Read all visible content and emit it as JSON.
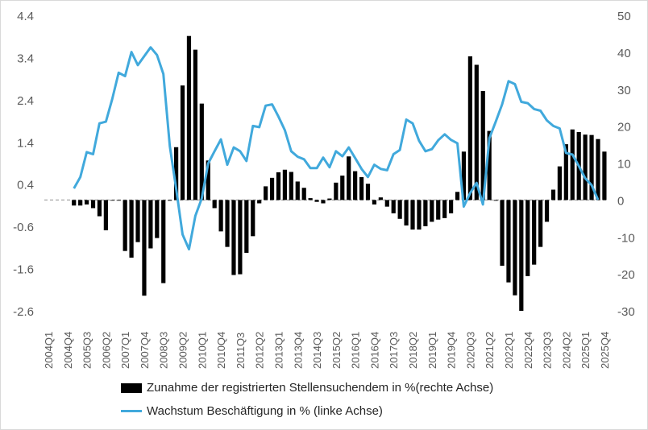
{
  "chart_data": {
    "type": "bar+line",
    "categories_start": "2004Q1",
    "categories_end": "2025Q4",
    "x_tick_labels": [
      "2004Q1",
      "2004Q4",
      "2005Q3",
      "2006Q2",
      "2007Q1",
      "2007Q4",
      "2008Q3",
      "2009Q2",
      "2010Q1",
      "2010Q4",
      "2011Q3",
      "2012Q2",
      "2013Q1",
      "2013Q4",
      "2014Q3",
      "2015Q2",
      "2016Q1",
      "2016Q4",
      "2017Q3",
      "2018Q2",
      "2019Q1",
      "2019Q4",
      "2020Q3",
      "2021Q2",
      "2022Q1",
      "2022Q4",
      "2023Q3",
      "2024Q2",
      "2025Q1",
      "2025Q4"
    ],
    "left_axis": {
      "ylim": [
        -2.6,
        4.4
      ],
      "ticks": [
        "4.4",
        "3.4",
        "2.4",
        "1.4",
        "0.4",
        "-0.6",
        "-1.6",
        "-2.6"
      ]
    },
    "right_axis": {
      "ylim": [
        -30,
        50
      ],
      "ticks": [
        "50",
        "40",
        "30",
        "20",
        "10",
        "0",
        "-10",
        "-20",
        "-30"
      ]
    },
    "grid": false,
    "legend_position": "bottom",
    "series": [
      {
        "name": "Zunahme der registrierten Stellensuchendem in %(rechte Achse)",
        "type": "bar",
        "axis": "right",
        "color": "#000000",
        "values": [
          null,
          null,
          null,
          null,
          -1.5,
          -1.5,
          -1.2,
          -2.2,
          -4.4,
          -8.2,
          0,
          0,
          -13.8,
          -15.6,
          -11.4,
          -25.9,
          -13.1,
          -10.3,
          -22.5,
          -0.2,
          14.3,
          31.0,
          44.4,
          40.7,
          26.1,
          10.7,
          -2.2,
          -8.5,
          -12.7,
          -20.3,
          -20.1,
          -14.3,
          -9.8,
          -0.9,
          3.7,
          6.0,
          7.5,
          8.2,
          7.6,
          5.0,
          3.3,
          0.5,
          -0.5,
          -0.9,
          0.4,
          4.7,
          6.6,
          11.8,
          7.8,
          6.2,
          4.4,
          -1.2,
          0.7,
          -1.8,
          -3.6,
          -5.1,
          -6.9,
          -8.0,
          -8.0,
          -7.1,
          -5.9,
          -5.3,
          -4.9,
          -3.6,
          2.2,
          13.1,
          38.9,
          36.6,
          29.5,
          18.7,
          -0.2,
          -17.8,
          -22.3,
          -25.8,
          -30.0,
          -20.6,
          -17.5,
          -12.7,
          -5.9,
          2.8,
          9.1,
          15.1,
          19.1,
          18.4,
          17.7,
          17.6,
          16.5,
          13.1
        ]
      },
      {
        "name": "Wachstum Beschäftigung in % (linke Achse)",
        "type": "line",
        "axis": "left",
        "color": "#41a9dc",
        "values": [
          null,
          null,
          null,
          null,
          0.3,
          0.57,
          1.16,
          1.11,
          1.84,
          1.88,
          2.42,
          3.04,
          2.96,
          3.53,
          3.22,
          3.43,
          3.64,
          3.46,
          3.01,
          1.3,
          0.29,
          -0.79,
          -1.14,
          -0.35,
          0.06,
          0.89,
          1.18,
          1.46,
          0.86,
          1.27,
          1.18,
          0.95,
          1.78,
          1.75,
          2.26,
          2.29,
          2.0,
          1.68,
          1.18,
          1.05,
          0.99,
          0.78,
          0.78,
          1.03,
          0.8,
          1.18,
          1.06,
          1.27,
          1.02,
          0.76,
          0.57,
          0.86,
          0.76,
          0.73,
          1.11,
          1.21,
          1.93,
          1.84,
          1.43,
          1.18,
          1.23,
          1.44,
          1.58,
          1.45,
          1.37,
          -0.13,
          0.19,
          0.43,
          -0.08,
          1.49,
          1.88,
          2.29,
          2.84,
          2.77,
          2.35,
          2.32,
          2.18,
          2.14,
          1.91,
          1.78,
          1.72,
          1.14,
          1.1,
          0.83,
          0.54,
          0.38,
          0.03,
          null
        ]
      }
    ]
  }
}
